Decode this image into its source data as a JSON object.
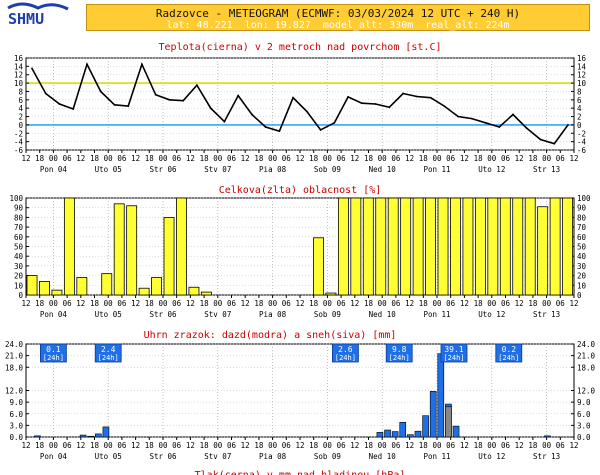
{
  "header": {
    "title": "Radzovce - METEOGRAM (ECMWF: 03/03/2024 12 UTC + 240 H)",
    "lat": "lat: 48.221",
    "lon": "lon: 19.827",
    "model_alt": "model_alt: 330m",
    "real_alt": "real_alt: 224m",
    "logo_text": "SHMU"
  },
  "colors": {
    "accent_yellow": "#ffcc33",
    "title_red": "#cc0000",
    "cloud_fill": "#ffff33",
    "rain_blue": "#1f6fe6",
    "snow_gray": "#888888",
    "zero_line": "#33aaff",
    "ten_line": "#dddd00"
  },
  "x_axis": {
    "hour_ticks": [
      "12",
      "18",
      "00",
      "06",
      "12",
      "18",
      "00",
      "06",
      "12",
      "18",
      "00",
      "06",
      "12",
      "18",
      "00",
      "06",
      "12",
      "18",
      "00",
      "06",
      "12",
      "18",
      "00",
      "06",
      "12",
      "18",
      "00",
      "06",
      "12",
      "18",
      "00",
      "06",
      "12",
      "18",
      "00",
      "06",
      "12",
      "18",
      "00",
      "06",
      "12"
    ],
    "day_labels": [
      "Pon 04",
      "Uto 05",
      "Str 06",
      "Stv 07",
      "Pia 08",
      "Sob 09",
      "Ned 10",
      "Pon 11",
      "Uto 12",
      "Str 13"
    ]
  },
  "chart_data": [
    {
      "type": "line",
      "title": "Teplota(cierna) v 2 metroch nad povrchom [st.C]",
      "ylabel": "st.C",
      "ylim": [
        -6,
        16
      ],
      "yticks": [
        -6,
        -4,
        -2,
        0,
        2,
        4,
        6,
        8,
        10,
        12,
        14,
        16
      ],
      "reference_lines": [
        0,
        10
      ],
      "series": [
        {
          "name": "Teplota",
          "values": [
            13.5,
            7.5,
            5,
            3.8,
            14.5,
            8,
            4.8,
            4.5,
            14.5,
            7.2,
            6,
            5.8,
            9.5,
            4,
            0.8,
            7,
            2.5,
            -0.5,
            -1.5,
            6.5,
            3.2,
            -1.2,
            0.5,
            6.7,
            5.2,
            5,
            4.2,
            7.5,
            6.8,
            6.5,
            4.5,
            2,
            1.5,
            0.5,
            -0.5,
            2.5,
            -0.8,
            -3.5,
            -4.5,
            0
          ]
        }
      ]
    },
    {
      "type": "bar",
      "title": "Celkova(zlta) oblacnost [%]",
      "ylabel": "%",
      "ylim": [
        0,
        100
      ],
      "yticks": [
        0,
        10,
        20,
        30,
        40,
        50,
        60,
        70,
        80,
        90,
        100
      ],
      "series": [
        {
          "name": "Oblacnost",
          "values": [
            20,
            14,
            5,
            100,
            18,
            0,
            22,
            94,
            92,
            7,
            18,
            80,
            100,
            8,
            3,
            0,
            0,
            0,
            0,
            0,
            0,
            0,
            0,
            59,
            2,
            100,
            100,
            100,
            100,
            100,
            100,
            100,
            100,
            100,
            100,
            100,
            100,
            100,
            100,
            100,
            100,
            91,
            100,
            100
          ]
        }
      ]
    },
    {
      "type": "bar",
      "title": "Uhrn zrazok: dazd(modra) a sneh(siva) [mm]",
      "ylabel": "mm",
      "ylim": [
        0,
        24
      ],
      "yticks": [
        "0.0",
        "3.0",
        "6.0",
        "9.0",
        "12.0",
        "18.0",
        "21.0",
        "24.0"
      ],
      "series": [
        {
          "name": "dazd",
          "values": [
            0,
            0.3,
            0,
            0,
            0,
            0,
            0,
            0.5,
            0.2,
            0.8,
            2.6,
            0,
            0,
            0,
            0,
            0,
            0,
            0,
            0,
            0,
            0,
            0,
            0,
            0,
            0,
            0,
            0,
            0,
            0,
            0,
            0,
            0,
            0,
            0,
            0,
            0,
            0,
            0,
            0,
            0,
            0,
            0,
            0,
            0,
            0,
            0,
            1.2,
            1.8,
            1.4,
            3.8,
            0.6,
            1.5,
            5.5,
            11.8,
            21.5,
            8.5,
            2.8,
            0,
            0,
            0,
            0,
            0,
            0,
            0,
            0,
            0,
            0,
            0,
            0.3,
            0,
            0,
            0
          ]
        },
        {
          "name": "sneh",
          "values": [
            0,
            0,
            0,
            0,
            0,
            0,
            0,
            0,
            0,
            0,
            0,
            0,
            0,
            0,
            0,
            0,
            0,
            0,
            0,
            0,
            0,
            0,
            0,
            0,
            0,
            0,
            0,
            0,
            0,
            0,
            0,
            0,
            0,
            0,
            0,
            0,
            0,
            0,
            0,
            0,
            0,
            0,
            0,
            0,
            0,
            0,
            0,
            0,
            0,
            0,
            0,
            0,
            0,
            0,
            0,
            7.8,
            0,
            0,
            0,
            0,
            0,
            0,
            0,
            0,
            0,
            0,
            0,
            0,
            0,
            0,
            0,
            0
          ]
        }
      ],
      "daily_totals": [
        "0.1",
        "2.4",
        "2.6",
        "9.8",
        "39.1",
        "0.2"
      ],
      "daily_total_unit": "[24h]"
    }
  ],
  "footer_partial": "Tlak(cerna) v mm nad hladinou [hPa]"
}
